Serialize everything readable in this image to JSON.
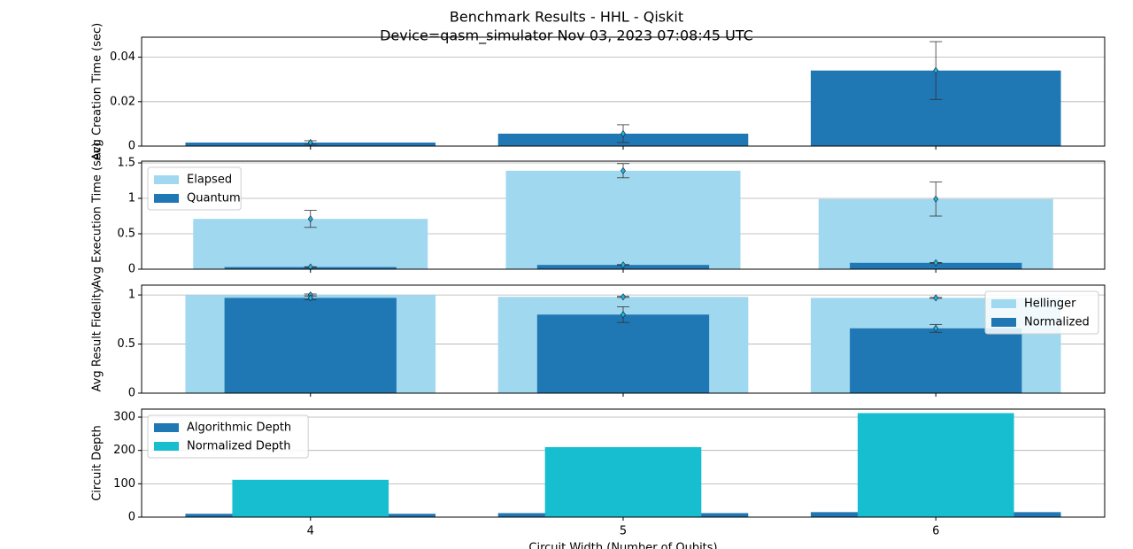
{
  "chart_data": [
    {
      "type": "bar",
      "title": "Benchmark Results - HHL - Qiskit",
      "subtitle": "Device=qasm_simulator  Nov 03, 2023 07:08:45 UTC",
      "ylabel": "Avg Creation Time (sec)",
      "x": [
        4,
        5,
        6
      ],
      "xlim": [
        3.46,
        6.54
      ],
      "xticks": [
        4,
        5,
        6
      ],
      "ylim": [
        0,
        0.049
      ],
      "yticks": [
        0.0,
        0.02,
        0.04
      ],
      "grid": true,
      "series": [
        {
          "color": "#1f77b4",
          "values": [
            0.0016,
            0.0056,
            0.034
          ],
          "errors": [
            0.0008,
            0.004,
            0.013
          ]
        }
      ]
    },
    {
      "type": "bar",
      "ylabel": "Avg Execution Time (sec)",
      "x": [
        4,
        5,
        6
      ],
      "xlim": [
        3.46,
        6.54
      ],
      "xticks": [
        4,
        5,
        6
      ],
      "ylim": [
        0,
        1.525
      ],
      "yticks": [
        0.0,
        0.5,
        1.0,
        1.5
      ],
      "grid": true,
      "legend": "upper-left",
      "series": [
        {
          "name": "Elapsed",
          "color": "#a0d8ef",
          "values": [
            0.71,
            1.39,
            0.99
          ],
          "errors": [
            0.12,
            0.1,
            0.24
          ]
        },
        {
          "name": "Quantum",
          "color": "#1f77b4",
          "values": [
            0.03,
            0.06,
            0.09
          ],
          "errors": [
            0.005,
            0.005,
            0.005
          ]
        }
      ]
    },
    {
      "type": "bar",
      "ylabel": "Avg Result Fidelity",
      "x": [
        4,
        5,
        6
      ],
      "xlim": [
        3.46,
        6.54
      ],
      "xticks": [
        4,
        5,
        6
      ],
      "ylim": [
        0,
        1.1
      ],
      "yticks": [
        0.0,
        0.5,
        1.0
      ],
      "grid": true,
      "legend": "upper-right",
      "series": [
        {
          "name": "Hellinger",
          "color": "#a0d8ef",
          "values": [
            1.0,
            0.98,
            0.97
          ],
          "errors": [
            0.01,
            0.005,
            0.005
          ]
        },
        {
          "name": "Normalized",
          "color": "#1f77b4",
          "values": [
            0.97,
            0.8,
            0.66
          ],
          "errors": [
            0.02,
            0.08,
            0.04
          ]
        }
      ]
    },
    {
      "type": "bar",
      "ylabel": "Circuit Depth",
      "xlabel": "Circuit Width (Number of Qubits)",
      "x": [
        4,
        5,
        6
      ],
      "xlim": [
        3.46,
        6.54
      ],
      "xticks": [
        4,
        5,
        6
      ],
      "ylim": [
        0,
        324
      ],
      "yticks": [
        0,
        100,
        200,
        300
      ],
      "grid": true,
      "legend": "upper-left",
      "series": [
        {
          "name": "Algorithmic Depth",
          "color": "#1f77b4",
          "values": [
            10,
            12,
            15
          ]
        },
        {
          "name": "Normalized Depth",
          "color": "#17becf",
          "values": [
            112,
            210,
            312
          ]
        }
      ]
    }
  ]
}
